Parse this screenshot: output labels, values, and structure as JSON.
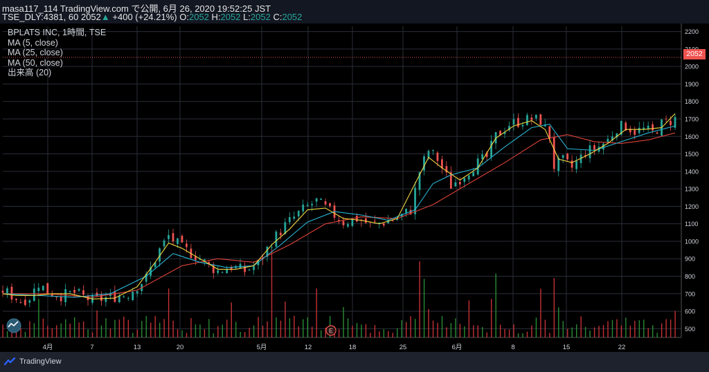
{
  "header": {
    "publisher_line": "masa117_114 TradingView.com で公開, 6月 26, 2020 19:52:25 JST",
    "symbol": "TSE_DLY:4381, 60",
    "last_price": "2052",
    "arrow": "▲",
    "change": "+400 (+24.21%)",
    "o_label": "O:",
    "o_value": "2052",
    "h_label": "H:",
    "h_value": "2052",
    "l_label": "L:",
    "l_value": "2052",
    "c_label": "C:",
    "c_value": "2052"
  },
  "legend": {
    "title": "BPLATS INC, 1時間, TSE",
    "ma5": "MA (5, close)",
    "ma25": "MA (25, close)",
    "ma50": "MA (50, close)",
    "volume": "出来高 (20)"
  },
  "footer": {
    "brand": "TradingView",
    "events_marker": "E"
  },
  "colors": {
    "up": "#26a69a",
    "down": "#ef5350",
    "ma5": "#f5d742",
    "ma25": "#29b6d6",
    "ma50": "#e0433a",
    "vol_up": "#2e9a3a",
    "vol_down": "#d9363a",
    "grid": "#2a2e39",
    "background": "#000000",
    "axis_text": "#d1d4dc"
  },
  "chart_data": {
    "type": "candlestick",
    "title": "BPLATS INC, 1時間, TSE",
    "x_tick_labels": [
      "4月",
      "7",
      "13",
      "20",
      "5月",
      "12",
      "18",
      "25",
      "6月",
      "8",
      "15",
      "22"
    ],
    "y_tick_labels": [
      "500",
      "600",
      "700",
      "800",
      "900",
      "1000",
      "1100",
      "1200",
      "1300",
      "1400",
      "1500",
      "1600",
      "1700",
      "1800",
      "1900",
      "2000",
      "2100",
      "2200"
    ],
    "ylim": [
      450,
      2230
    ],
    "last_price_label": "2052",
    "series": [
      {
        "name": "MA (5, close)"
      },
      {
        "name": "MA (25, close)"
      },
      {
        "name": "MA (50, close)"
      },
      {
        "name": "出来高 (20)"
      }
    ],
    "price_path": [
      [
        0,
        720
      ],
      [
        2,
        690
      ],
      [
        4,
        660
      ],
      [
        6,
        680
      ],
      [
        8,
        760
      ],
      [
        10,
        710
      ],
      [
        13,
        690
      ],
      [
        16,
        705
      ],
      [
        20,
        660
      ],
      [
        24,
        680
      ],
      [
        28,
        700
      ],
      [
        32,
        790
      ],
      [
        35,
        950
      ],
      [
        37,
        1030
      ],
      [
        40,
        960
      ],
      [
        43,
        920
      ],
      [
        46,
        860
      ],
      [
        48,
        830
      ],
      [
        51,
        855
      ],
      [
        54,
        830
      ],
      [
        57,
        870
      ],
      [
        60,
        1000
      ],
      [
        63,
        1090
      ],
      [
        66,
        1160
      ],
      [
        68,
        1200
      ],
      [
        70,
        1230
      ],
      [
        73,
        1170
      ],
      [
        76,
        1110
      ],
      [
        79,
        1130
      ],
      [
        82,
        1095
      ],
      [
        85,
        1110
      ],
      [
        88,
        1130
      ],
      [
        91,
        1180
      ],
      [
        93,
        1400
      ],
      [
        95,
        1520
      ],
      [
        97,
        1470
      ],
      [
        100,
        1320
      ],
      [
        102,
        1360
      ],
      [
        105,
        1430
      ],
      [
        108,
        1480
      ],
      [
        110,
        1600
      ],
      [
        113,
        1670
      ],
      [
        116,
        1690
      ],
      [
        118,
        1700
      ],
      [
        120,
        1690
      ],
      [
        122,
        1600
      ],
      [
        123,
        1430
      ],
      [
        125,
        1460
      ],
      [
        127,
        1420
      ],
      [
        130,
        1510
      ],
      [
        133,
        1540
      ],
      [
        135,
        1580
      ],
      [
        137,
        1650
      ],
      [
        139,
        1660
      ],
      [
        141,
        1630
      ],
      [
        143,
        1640
      ],
      [
        145,
        1620
      ],
      [
        147,
        1670
      ],
      [
        150,
        1700
      ]
    ],
    "ma5_path": [
      [
        0,
        700
      ],
      [
        3,
        690
      ],
      [
        7,
        690
      ],
      [
        11,
        700
      ],
      [
        15,
        700
      ],
      [
        20,
        670
      ],
      [
        25,
        675
      ],
      [
        30,
        740
      ],
      [
        34,
        880
      ],
      [
        37,
        990
      ],
      [
        40,
        960
      ],
      [
        44,
        900
      ],
      [
        48,
        840
      ],
      [
        52,
        840
      ],
      [
        56,
        860
      ],
      [
        60,
        980
      ],
      [
        64,
        1070
      ],
      [
        68,
        1180
      ],
      [
        72,
        1190
      ],
      [
        76,
        1130
      ],
      [
        80,
        1120
      ],
      [
        84,
        1100
      ],
      [
        88,
        1130
      ],
      [
        92,
        1330
      ],
      [
        95,
        1480
      ],
      [
        98,
        1420
      ],
      [
        102,
        1350
      ],
      [
        106,
        1420
      ],
      [
        110,
        1590
      ],
      [
        114,
        1660
      ],
      [
        118,
        1690
      ],
      [
        121,
        1640
      ],
      [
        124,
        1470
      ],
      [
        127,
        1450
      ],
      [
        131,
        1500
      ],
      [
        135,
        1560
      ],
      [
        139,
        1640
      ],
      [
        143,
        1640
      ],
      [
        147,
        1650
      ],
      [
        150,
        1730
      ]
    ],
    "ma25_path": [
      [
        0,
        700
      ],
      [
        8,
        690
      ],
      [
        16,
        680
      ],
      [
        24,
        700
      ],
      [
        32,
        800
      ],
      [
        38,
        930
      ],
      [
        44,
        880
      ],
      [
        50,
        850
      ],
      [
        56,
        860
      ],
      [
        62,
        980
      ],
      [
        68,
        1110
      ],
      [
        74,
        1170
      ],
      [
        80,
        1150
      ],
      [
        86,
        1120
      ],
      [
        92,
        1180
      ],
      [
        96,
        1330
      ],
      [
        100,
        1380
      ],
      [
        106,
        1420
      ],
      [
        112,
        1540
      ],
      [
        118,
        1650
      ],
      [
        122,
        1670
      ],
      [
        126,
        1530
      ],
      [
        132,
        1520
      ],
      [
        138,
        1570
      ],
      [
        144,
        1620
      ],
      [
        150,
        1660
      ]
    ],
    "ma50_path": [
      [
        0,
        700
      ],
      [
        10,
        700
      ],
      [
        20,
        680
      ],
      [
        30,
        720
      ],
      [
        40,
        860
      ],
      [
        48,
        900
      ],
      [
        56,
        880
      ],
      [
        64,
        980
      ],
      [
        72,
        1100
      ],
      [
        80,
        1140
      ],
      [
        88,
        1130
      ],
      [
        96,
        1210
      ],
      [
        104,
        1330
      ],
      [
        112,
        1450
      ],
      [
        120,
        1580
      ],
      [
        126,
        1610
      ],
      [
        132,
        1570
      ],
      [
        138,
        1560
      ],
      [
        144,
        1580
      ],
      [
        150,
        1620
      ]
    ]
  }
}
